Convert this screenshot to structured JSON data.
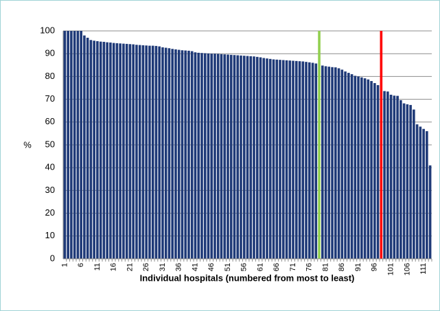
{
  "chart_data": {
    "type": "bar",
    "x_label": "Individual hospitals (numbered from most to least)",
    "y_label": "%",
    "categories": [
      1,
      null,
      null,
      null,
      null,
      6,
      null,
      null,
      null,
      null,
      11,
      null,
      null,
      null,
      null,
      16,
      null,
      null,
      null,
      null,
      21,
      null,
      null,
      null,
      null,
      26,
      null,
      null,
      null,
      null,
      31,
      null,
      null,
      null,
      null,
      36,
      null,
      null,
      null,
      null,
      41,
      null,
      null,
      null,
      null,
      46,
      null,
      null,
      null,
      null,
      51,
      null,
      null,
      null,
      null,
      56,
      null,
      null,
      null,
      null,
      61,
      null,
      null,
      null,
      null,
      66,
      null,
      null,
      null,
      null,
      71,
      null,
      null,
      null,
      null,
      76,
      null,
      null,
      null,
      null,
      81,
      null,
      null,
      null,
      null,
      86,
      null,
      null,
      null,
      null,
      91,
      null,
      null,
      null,
      null,
      96,
      null,
      null,
      null,
      null,
      101,
      null,
      null,
      null,
      null,
      106,
      null,
      null,
      null,
      null,
      111,
      null,
      null
    ],
    "values": [
      100,
      100,
      100,
      100,
      100,
      100,
      98,
      97,
      96,
      95.7,
      95.5,
      95.3,
      95.2,
      95,
      94.9,
      94.7,
      94.6,
      94.5,
      94.4,
      94.3,
      94.2,
      94.1,
      93.9,
      93.8,
      93.7,
      93.6,
      93.5,
      93.5,
      93.4,
      93.2,
      92.8,
      92.6,
      92.4,
      92.1,
      91.9,
      91.7,
      91.5,
      91.4,
      91.3,
      91.1,
      90.6,
      90.4,
      90.3,
      90.2,
      90.1,
      90,
      90,
      89.9,
      89.8,
      89.7,
      89.6,
      89.5,
      89.4,
      89.3,
      89.2,
      89.1,
      89,
      88.9,
      88.8,
      88.6,
      88.4,
      88.1,
      87.9,
      87.7,
      87.5,
      87.4,
      87.3,
      87.2,
      87.1,
      87,
      86.9,
      86.8,
      86.7,
      86.6,
      86.4,
      86.2,
      86,
      85.7,
      100,
      84.8,
      84.5,
      84.3,
      84.1,
      84,
      83.6,
      83,
      82.2,
      81.6,
      81,
      80.3,
      80,
      79.6,
      79.2,
      78.7,
      78,
      77.1,
      76.2,
      100,
      73.6,
      73.4,
      72,
      71.6,
      71.5,
      69.6,
      68.2,
      67.8,
      67.5,
      65.5,
      59,
      58,
      57,
      56,
      41
    ],
    "colors": [
      "#1f3a78",
      "#1f3a78",
      "#1f3a78",
      "#1f3a78",
      "#1f3a78",
      "#1f3a78",
      "#1f3a78",
      "#1f3a78",
      "#1f3a78",
      "#1f3a78",
      "#1f3a78",
      "#1f3a78",
      "#1f3a78",
      "#1f3a78",
      "#1f3a78",
      "#1f3a78",
      "#1f3a78",
      "#1f3a78",
      "#1f3a78",
      "#1f3a78",
      "#1f3a78",
      "#1f3a78",
      "#1f3a78",
      "#1f3a78",
      "#1f3a78",
      "#1f3a78",
      "#1f3a78",
      "#1f3a78",
      "#1f3a78",
      "#1f3a78",
      "#1f3a78",
      "#1f3a78",
      "#1f3a78",
      "#1f3a78",
      "#1f3a78",
      "#1f3a78",
      "#1f3a78",
      "#1f3a78",
      "#1f3a78",
      "#1f3a78",
      "#1f3a78",
      "#1f3a78",
      "#1f3a78",
      "#1f3a78",
      "#1f3a78",
      "#1f3a78",
      "#1f3a78",
      "#1f3a78",
      "#1f3a78",
      "#1f3a78",
      "#1f3a78",
      "#1f3a78",
      "#1f3a78",
      "#1f3a78",
      "#1f3a78",
      "#1f3a78",
      "#1f3a78",
      "#1f3a78",
      "#1f3a78",
      "#1f3a78",
      "#1f3a78",
      "#1f3a78",
      "#1f3a78",
      "#1f3a78",
      "#1f3a78",
      "#1f3a78",
      "#1f3a78",
      "#1f3a78",
      "#1f3a78",
      "#1f3a78",
      "#1f3a78",
      "#1f3a78",
      "#1f3a78",
      "#1f3a78",
      "#1f3a78",
      "#1f3a78",
      "#1f3a78",
      "#1f3a78",
      "#92d050",
      "#1f3a78",
      "#1f3a78",
      "#1f3a78",
      "#1f3a78",
      "#1f3a78",
      "#1f3a78",
      "#1f3a78",
      "#1f3a78",
      "#1f3a78",
      "#1f3a78",
      "#1f3a78",
      "#1f3a78",
      "#1f3a78",
      "#1f3a78",
      "#1f3a78",
      "#1f3a78",
      "#1f3a78",
      "#1f3a78",
      "#ff0000",
      "#1f3a78",
      "#1f3a78",
      "#1f3a78",
      "#1f3a78",
      "#1f3a78",
      "#1f3a78",
      "#1f3a78",
      "#1f3a78",
      "#1f3a78",
      "#1f3a78",
      "#1f3a78",
      "#1f3a78",
      "#1f3a78",
      "#1f3a78",
      "#1f3a78"
    ],
    "ylim": [
      0,
      100
    ],
    "yticks": [
      0,
      10,
      20,
      30,
      40,
      50,
      60,
      70,
      80,
      90,
      100
    ],
    "grid": true
  }
}
